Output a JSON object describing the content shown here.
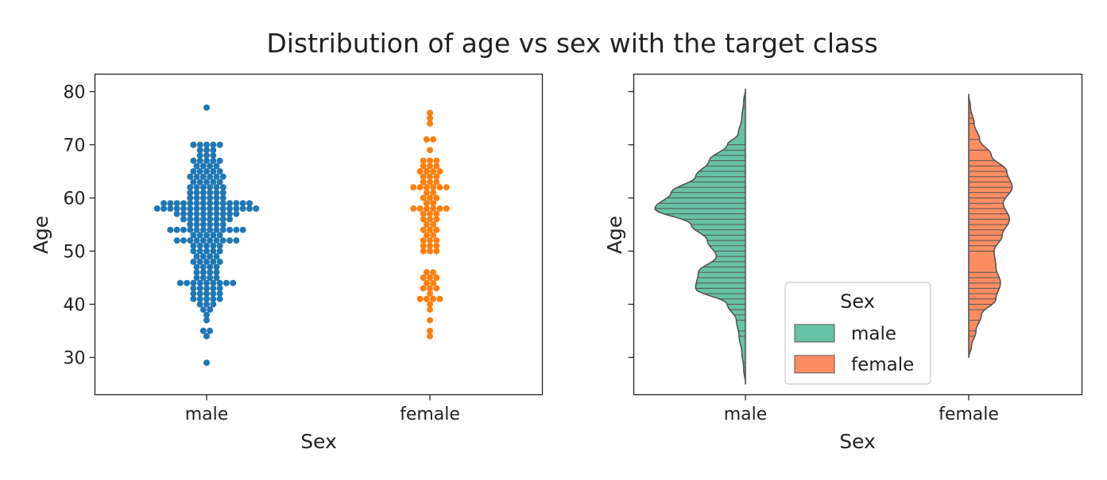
{
  "figure": {
    "title": "Distribution of age vs sex with the target class"
  },
  "chart_data": [
    {
      "type": "scatter",
      "subtype": "swarm",
      "xlabel": "Sex",
      "ylabel": "Age",
      "categories": [
        "male",
        "female"
      ],
      "ylim": [
        22.5,
        83.5
      ],
      "yticks": [
        30,
        40,
        50,
        60,
        70,
        80
      ],
      "grid": false,
      "colors": {
        "male": "#1f77b4",
        "female": "#ff7f0e"
      },
      "counts": {
        "male": {
          "29": 1,
          "34": 1,
          "35": 2,
          "37": 1,
          "38": 1,
          "39": 2,
          "40": 3,
          "41": 5,
          "42": 5,
          "43": 5,
          "44": 9,
          "45": 4,
          "46": 4,
          "47": 4,
          "48": 5,
          "49": 4,
          "50": 5,
          "51": 5,
          "52": 10,
          "53": 5,
          "54": 12,
          "55": 6,
          "56": 8,
          "57": 10,
          "58": 16,
          "59": 14,
          "60": 6,
          "61": 6,
          "62": 6,
          "63": 5,
          "64": 6,
          "65": 5,
          "66": 4,
          "67": 5,
          "68": 3,
          "69": 3,
          "70": 5,
          "77": 1
        },
        "female": {
          "34": 1,
          "35": 1,
          "37": 1,
          "39": 1,
          "40": 1,
          "41": 4,
          "42": 1,
          "43": 3,
          "44": 2,
          "45": 3,
          "46": 2,
          "50": 3,
          "51": 3,
          "52": 3,
          "53": 2,
          "54": 3,
          "55": 2,
          "56": 3,
          "57": 3,
          "58": 6,
          "59": 2,
          "60": 3,
          "61": 2,
          "62": 6,
          "63": 3,
          "64": 3,
          "65": 4,
          "66": 3,
          "67": 3,
          "69": 1,
          "71": 2,
          "74": 1,
          "75": 1,
          "76": 1
        }
      }
    },
    {
      "type": "violin",
      "split": true,
      "inner": "stick",
      "xlabel": "Sex",
      "ylabel": "Age",
      "categories": [
        "male",
        "female"
      ],
      "ylim": [
        22.5,
        83.5
      ],
      "yticks": [
        30,
        40,
        50,
        60,
        70,
        80
      ],
      "grid": false,
      "legend": {
        "title": "Sex",
        "entries": [
          "male",
          "female"
        ],
        "placement": "lower-center"
      },
      "colors": {
        "male": "#66c2a5",
        "female": "#fc8d62"
      },
      "density": {
        "male": {
          "ages": [
            25,
            28,
            31,
            34,
            37,
            40,
            43,
            46,
            49,
            52,
            55,
            58,
            61,
            64,
            67,
            70,
            72,
            75,
            78,
            80.5
          ],
          "width": [
            0.0,
            0.02,
            0.04,
            0.07,
            0.1,
            0.2,
            0.55,
            0.52,
            0.32,
            0.42,
            0.6,
            1.0,
            0.82,
            0.55,
            0.4,
            0.2,
            0.08,
            0.04,
            0.02,
            0.0
          ]
        },
        "female": {
          "ages": [
            30,
            32,
            35,
            38,
            41,
            44,
            47,
            50,
            53,
            56,
            59,
            62,
            65,
            68,
            71,
            74,
            77,
            79.5
          ],
          "width": [
            0.0,
            0.03,
            0.08,
            0.14,
            0.3,
            0.35,
            0.3,
            0.28,
            0.37,
            0.45,
            0.38,
            0.48,
            0.42,
            0.25,
            0.12,
            0.06,
            0.02,
            0.0
          ]
        }
      }
    }
  ]
}
